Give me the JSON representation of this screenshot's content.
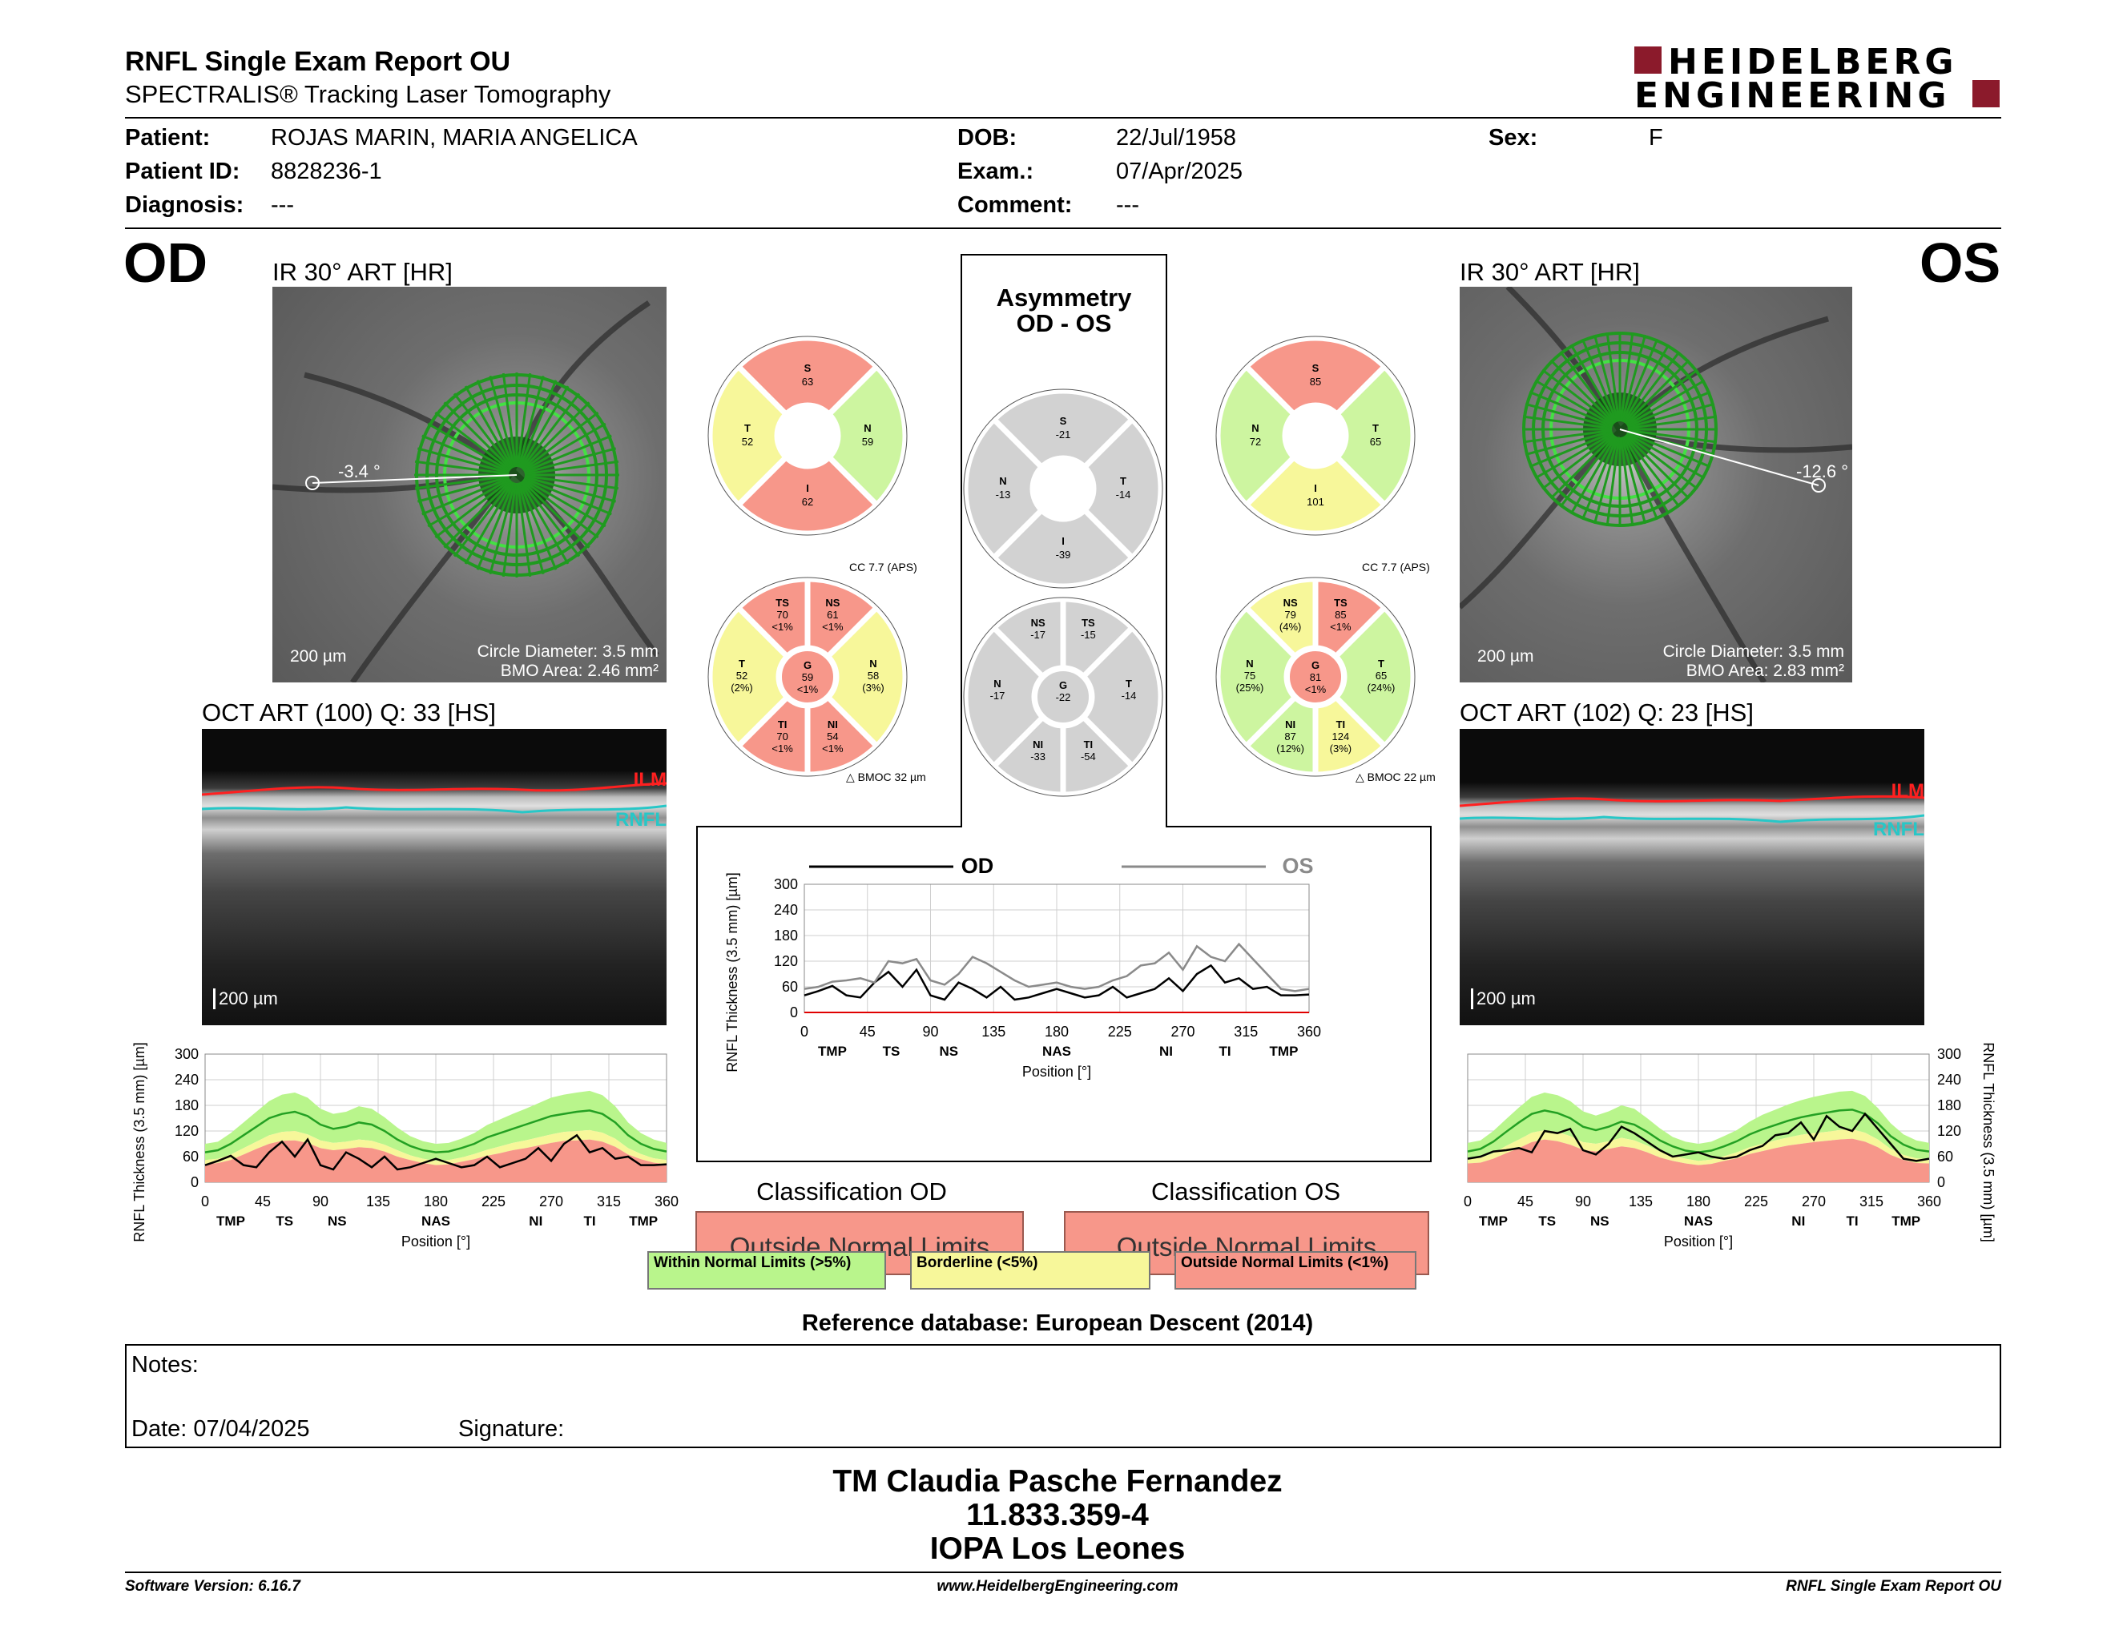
{
  "header": {
    "title": "RNFL Single Exam Report OU",
    "subtitle": "SPECTRALIS® Tracking Laser Tomography",
    "logo_line1": "HEIDELBERG",
    "logo_line2": "ENGINEERING"
  },
  "patient": {
    "patient_label": "Patient:",
    "patient_value": "ROJAS MARIN, MARIA ANGELICA",
    "id_label": "Patient ID:",
    "id_value": "8828236-1",
    "diagnosis_label": "Diagnosis:",
    "diagnosis_value": "---",
    "dob_label": "DOB:",
    "dob_value": "22/Jul/1958",
    "exam_label": "Exam.:",
    "exam_value": "07/Apr/2025",
    "comment_label": "Comment:",
    "comment_value": "---",
    "sex_label": "Sex:",
    "sex_value": "F"
  },
  "od": {
    "eye": "OD",
    "ir_title": "IR 30° ART [HR]",
    "angle": "-3.4 °",
    "scale": "200 µm",
    "circle_diameter": "Circle Diameter: 3.5 mm",
    "bmo_area": "BMO Area: 2.46 mm²",
    "oct_title": "OCT ART (100) Q: 33 [HS]",
    "oct_scale": "200 µm",
    "ilm": "ILM",
    "rnfl": "RNFL",
    "cc": "CC 7.7 (APS)",
    "bmoc": "BMOC 32 µm",
    "classification_title": "Classification OD",
    "classification": "Outside Normal Limits",
    "sectors4": [
      {
        "name": "S",
        "value": "63",
        "color": "#f7978a"
      },
      {
        "name": "N",
        "value": "59",
        "color": "#cdf5a0"
      },
      {
        "name": "I",
        "value": "62",
        "color": "#f7978a"
      },
      {
        "name": "T",
        "value": "52",
        "color": "#f7f79a"
      }
    ],
    "sectors6": [
      {
        "name": "NS",
        "value": "61",
        "pct": "<1%",
        "color": "#f7978a"
      },
      {
        "name": "N",
        "value": "58",
        "pct": "(3%)",
        "color": "#f7f79a"
      },
      {
        "name": "NI",
        "value": "54",
        "pct": "<1%",
        "color": "#f7978a"
      },
      {
        "name": "TI",
        "value": "70",
        "pct": "<1%",
        "color": "#f7978a"
      },
      {
        "name": "T",
        "value": "52",
        "pct": "(2%)",
        "color": "#f7f79a"
      },
      {
        "name": "TS",
        "value": "70",
        "pct": "<1%",
        "color": "#f7978a"
      }
    ],
    "global": {
      "name": "G",
      "value": "59",
      "pct": "<1%",
      "color": "#f7978a"
    }
  },
  "os": {
    "eye": "OS",
    "ir_title": "IR 30° ART [HR]",
    "angle": "-12.6 °",
    "scale": "200 µm",
    "circle_diameter": "Circle Diameter: 3.5 mm",
    "bmo_area": "BMO Area: 2.83 mm²",
    "oct_title": "OCT ART (102) Q: 23 [HS]",
    "oct_scale": "200 µm",
    "ilm": "ILM",
    "rnfl": "RNFL",
    "cc": "CC 7.7 (APS)",
    "bmoc": "BMOC 22 µm",
    "classification_title": "Classification OS",
    "classification": "Outside Normal Limits",
    "sectors4": [
      {
        "name": "S",
        "value": "85",
        "color": "#f7978a"
      },
      {
        "name": "T",
        "value": "65",
        "color": "#cdf5a0"
      },
      {
        "name": "I",
        "value": "101",
        "color": "#f7f79a"
      },
      {
        "name": "N",
        "value": "72",
        "color": "#cdf5a0"
      }
    ],
    "sectors6": [
      {
        "name": "TS",
        "value": "85",
        "pct": "<1%",
        "color": "#f7978a"
      },
      {
        "name": "T",
        "value": "65",
        "pct": "(24%)",
        "color": "#cdf5a0"
      },
      {
        "name": "TI",
        "value": "124",
        "pct": "(3%)",
        "color": "#f7f79a"
      },
      {
        "name": "NI",
        "value": "87",
        "pct": "(12%)",
        "color": "#cdf5a0"
      },
      {
        "name": "N",
        "value": "75",
        "pct": "(25%)",
        "color": "#cdf5a0"
      },
      {
        "name": "NS",
        "value": "79",
        "pct": "(4%)",
        "color": "#f7f79a"
      }
    ],
    "global": {
      "name": "G",
      "value": "81",
      "pct": "<1%",
      "color": "#f7978a"
    }
  },
  "asymmetry": {
    "title1": "Asymmetry",
    "title2": "OD - OS",
    "sectors4": [
      {
        "name": "S",
        "value": "-21"
      },
      {
        "name": "T",
        "value": "-14"
      },
      {
        "name": "I",
        "value": "-39"
      },
      {
        "name": "N",
        "value": "-13"
      }
    ],
    "sectors6": [
      {
        "name": "TS",
        "value": "-15"
      },
      {
        "name": "T",
        "value": "-14"
      },
      {
        "name": "TI",
        "value": "-54"
      },
      {
        "name": "NI",
        "value": "-33"
      },
      {
        "name": "N",
        "value": "-17"
      },
      {
        "name": "NS",
        "value": "-17"
      }
    ],
    "global": {
      "name": "G",
      "value": "-22"
    }
  },
  "legend": {
    "within": "Within Normal Limits (>5%)",
    "borderline": "Borderline (<5%)",
    "outside": "Outside Normal Limits (<1%)",
    "color_within": "#b9f58c",
    "color_borderline": "#f7f79a",
    "color_outside": "#f7978a"
  },
  "reference": "Reference database: European Descent (2014)",
  "notes": {
    "notes_label": "Notes:",
    "date_label": "Date: 07/04/2025",
    "signature_label": "Signature:"
  },
  "signer": {
    "name": "TM Claudia Pasche Fernandez",
    "id": "11.833.359-4",
    "org": "IOPA Los Leones"
  },
  "footer": {
    "version": "Software Version: 6.16.7",
    "url": "www.HeidelbergEngineering.com",
    "report": "RNFL Single Exam Report OU"
  },
  "chart_data": [
    {
      "type": "line",
      "name": "OD thickness profile",
      "xlabel": "Position [°]",
      "ylabel": "RNFL Thickness (3.5 mm) [µm]",
      "xlim": [
        0,
        360
      ],
      "ylim": [
        0,
        300
      ],
      "xticks": [
        0,
        45,
        90,
        135,
        180,
        225,
        270,
        315,
        360
      ],
      "yticks": [
        0,
        60,
        120,
        180,
        240,
        300
      ],
      "sector_labels": [
        {
          "x": 20,
          "label": "TMP"
        },
        {
          "x": 62,
          "label": "TS"
        },
        {
          "x": 103,
          "label": "NS"
        },
        {
          "x": 180,
          "label": "NAS"
        },
        {
          "x": 258,
          "label": "NI"
        },
        {
          "x": 300,
          "label": "TI"
        },
        {
          "x": 342,
          "label": "TMP"
        }
      ],
      "x": [
        0,
        10,
        20,
        30,
        40,
        50,
        60,
        70,
        80,
        90,
        100,
        110,
        120,
        130,
        140,
        150,
        160,
        170,
        180,
        190,
        200,
        210,
        220,
        230,
        240,
        250,
        260,
        270,
        280,
        290,
        300,
        310,
        320,
        330,
        340,
        350,
        360
      ],
      "normal_mean": [
        70,
        75,
        90,
        110,
        130,
        150,
        160,
        165,
        155,
        135,
        125,
        130,
        140,
        135,
        120,
        100,
        85,
        75,
        70,
        72,
        80,
        90,
        105,
        115,
        125,
        135,
        145,
        155,
        160,
        165,
        168,
        160,
        140,
        110,
        90,
        78,
        72
      ],
      "limit_5": [
        52,
        55,
        65,
        80,
        95,
        110,
        118,
        120,
        112,
        98,
        92,
        95,
        100,
        97,
        88,
        75,
        63,
        55,
        50,
        52,
        58,
        66,
        76,
        84,
        92,
        98,
        105,
        112,
        118,
        120,
        122,
        116,
        102,
        80,
        66,
        56,
        52
      ],
      "limit_1": [
        42,
        45,
        52,
        65,
        78,
        90,
        97,
        98,
        92,
        80,
        75,
        78,
        82,
        80,
        72,
        60,
        52,
        45,
        40,
        42,
        48,
        54,
        62,
        68,
        75,
        80,
        86,
        92,
        97,
        98,
        100,
        95,
        83,
        65,
        54,
        46,
        42
      ],
      "limit_upper": [
        90,
        95,
        115,
        140,
        165,
        190,
        205,
        210,
        198,
        172,
        160,
        165,
        178,
        172,
        152,
        128,
        108,
        96,
        90,
        92,
        102,
        115,
        134,
        147,
        160,
        172,
        185,
        198,
        205,
        210,
        214,
        204,
        178,
        140,
        115,
        100,
        92
      ],
      "series": [
        {
          "name": "OD",
          "values": [
            40,
            50,
            62,
            40,
            35,
            70,
            95,
            60,
            100,
            40,
            30,
            70,
            55,
            35,
            60,
            30,
            35,
            45,
            55,
            45,
            35,
            40,
            60,
            35,
            45,
            55,
            80,
            50,
            90,
            110,
            70,
            80,
            55,
            60,
            40,
            40,
            42
          ]
        }
      ]
    },
    {
      "type": "line",
      "name": "Asymmetry OD vs OS",
      "xlabel": "Position [°]",
      "ylabel": "RNFL Thickness (3.5 mm) [µm]",
      "xlim": [
        0,
        360
      ],
      "ylim": [
        0,
        300
      ],
      "xticks": [
        0,
        45,
        90,
        135,
        180,
        225,
        270,
        315,
        360
      ],
      "yticks": [
        0,
        60,
        120,
        180,
        240,
        300
      ],
      "sector_labels": [
        {
          "x": 20,
          "label": "TMP"
        },
        {
          "x": 62,
          "label": "TS"
        },
        {
          "x": 103,
          "label": "NS"
        },
        {
          "x": 180,
          "label": "NAS"
        },
        {
          "x": 258,
          "label": "NI"
        },
        {
          "x": 300,
          "label": "TI"
        },
        {
          "x": 342,
          "label": "TMP"
        }
      ],
      "x": [
        0,
        10,
        20,
        30,
        40,
        50,
        60,
        70,
        80,
        90,
        100,
        110,
        120,
        130,
        140,
        150,
        160,
        170,
        180,
        190,
        200,
        210,
        220,
        230,
        240,
        250,
        260,
        270,
        280,
        290,
        300,
        310,
        320,
        330,
        340,
        350,
        360
      ],
      "series": [
        {
          "name": "OD",
          "values": [
            40,
            50,
            62,
            40,
            35,
            70,
            95,
            60,
            100,
            40,
            30,
            70,
            55,
            35,
            60,
            30,
            35,
            45,
            55,
            45,
            35,
            40,
            60,
            35,
            45,
            55,
            80,
            50,
            90,
            110,
            70,
            80,
            55,
            60,
            40,
            40,
            42
          ]
        },
        {
          "name": "OS",
          "values": [
            55,
            60,
            72,
            75,
            80,
            70,
            120,
            115,
            125,
            75,
            65,
            90,
            130,
            115,
            95,
            75,
            60,
            65,
            70,
            60,
            55,
            60,
            75,
            85,
            110,
            115,
            140,
            100,
            155,
            130,
            120,
            160,
            125,
            90,
            55,
            50,
            55
          ]
        }
      ]
    },
    {
      "type": "line",
      "name": "OS thickness profile",
      "xlabel": "Position [°]",
      "ylabel": "RNFL Thickness (3.5 mm) [µm]",
      "xlim": [
        0,
        360
      ],
      "ylim": [
        0,
        300
      ],
      "xticks": [
        0,
        45,
        90,
        135,
        180,
        225,
        270,
        315,
        360
      ],
      "yticks": [
        0,
        60,
        120,
        180,
        240,
        300
      ],
      "sector_labels": [
        {
          "x": 20,
          "label": "TMP"
        },
        {
          "x": 62,
          "label": "TS"
        },
        {
          "x": 103,
          "label": "NS"
        },
        {
          "x": 180,
          "label": "NAS"
        },
        {
          "x": 258,
          "label": "NI"
        },
        {
          "x": 300,
          "label": "TI"
        },
        {
          "x": 342,
          "label": "TMP"
        }
      ],
      "x": [
        0,
        10,
        20,
        30,
        40,
        50,
        60,
        70,
        80,
        90,
        100,
        110,
        120,
        130,
        140,
        150,
        160,
        170,
        180,
        190,
        200,
        210,
        220,
        230,
        240,
        250,
        260,
        270,
        280,
        290,
        300,
        310,
        320,
        330,
        340,
        350,
        360
      ],
      "normal_mean": [
        72,
        78,
        95,
        118,
        140,
        160,
        168,
        162,
        150,
        130,
        122,
        130,
        142,
        135,
        118,
        98,
        84,
        74,
        70,
        74,
        84,
        96,
        112,
        124,
        134,
        144,
        152,
        158,
        163,
        168,
        170,
        160,
        138,
        108,
        88,
        76,
        72
      ],
      "limit_5": [
        54,
        57,
        68,
        85,
        100,
        116,
        122,
        118,
        108,
        94,
        90,
        96,
        104,
        98,
        86,
        72,
        62,
        55,
        50,
        53,
        61,
        70,
        82,
        90,
        98,
        105,
        111,
        115,
        118,
        122,
        124,
        116,
        100,
        78,
        64,
        56,
        54
      ],
      "limit_1": [
        44,
        46,
        55,
        68,
        80,
        94,
        100,
        96,
        88,
        76,
        72,
        78,
        84,
        80,
        70,
        58,
        50,
        44,
        40,
        43,
        50,
        56,
        66,
        73,
        80,
        86,
        90,
        94,
        97,
        100,
        102,
        95,
        82,
        64,
        52,
        45,
        44
      ],
      "limit_upper": [
        92,
        98,
        120,
        148,
        175,
        200,
        210,
        204,
        190,
        166,
        156,
        166,
        180,
        172,
        150,
        126,
        106,
        95,
        90,
        95,
        108,
        122,
        142,
        158,
        170,
        182,
        192,
        200,
        206,
        212,
        214,
        202,
        174,
        138,
        112,
        98,
        92
      ],
      "series": [
        {
          "name": "OS",
          "values": [
            55,
            60,
            72,
            75,
            80,
            70,
            120,
            115,
            125,
            75,
            65,
            90,
            130,
            115,
            95,
            75,
            60,
            65,
            70,
            60,
            55,
            60,
            75,
            85,
            110,
            115,
            140,
            100,
            155,
            130,
            120,
            160,
            125,
            90,
            55,
            50,
            55
          ]
        }
      ]
    }
  ]
}
